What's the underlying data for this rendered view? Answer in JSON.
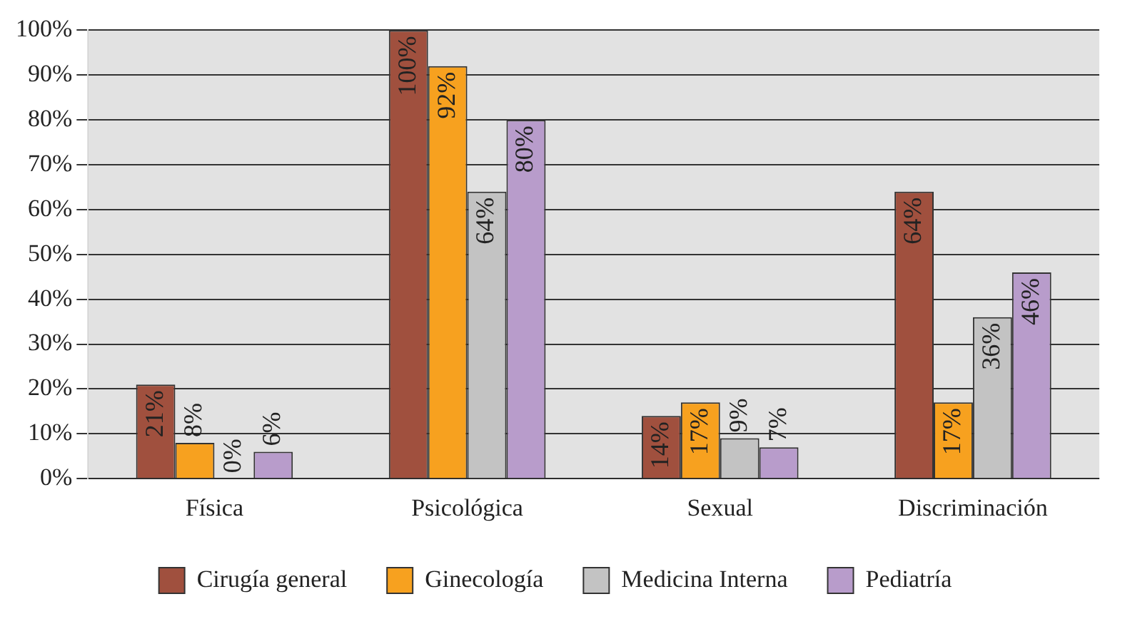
{
  "chart_data": {
    "type": "bar",
    "categories": [
      "Física",
      "Psicológica",
      "Sexual",
      "Discriminación"
    ],
    "series": [
      {
        "name": "Cirugía general",
        "color": "#a0503e",
        "values": [
          21,
          100,
          14,
          64
        ],
        "value_labels": [
          "21%",
          "100%",
          "14%",
          "64%"
        ]
      },
      {
        "name": "Ginecología",
        "color": "#f7a11f",
        "values": [
          8,
          92,
          17,
          17
        ],
        "value_labels": [
          "8%",
          "92%",
          "17%",
          "17%"
        ]
      },
      {
        "name": "Medicina Interna",
        "color": "#c3c3c3",
        "values": [
          0,
          64,
          9,
          36
        ],
        "value_labels": [
          "0%",
          "64%",
          "9%",
          "36%"
        ]
      },
      {
        "name": "Pediatría",
        "color": "#b89ccb",
        "values": [
          6,
          80,
          7,
          46
        ],
        "value_labels": [
          "6%",
          "80%",
          "7%",
          "46%"
        ]
      }
    ],
    "ylim": [
      0,
      100
    ],
    "yticks": [
      {
        "value": 0,
        "label": "0%"
      },
      {
        "value": 10,
        "label": "10%"
      },
      {
        "value": 20,
        "label": "20%"
      },
      {
        "value": 30,
        "label": "30%"
      },
      {
        "value": 40,
        "label": "40%"
      },
      {
        "value": 50,
        "label": "50%"
      },
      {
        "value": 60,
        "label": "60%"
      },
      {
        "value": 70,
        "label": "70%"
      },
      {
        "value": 80,
        "label": "80%"
      },
      {
        "value": 90,
        "label": "90%"
      },
      {
        "value": 100,
        "label": "100%"
      }
    ],
    "grid": "y",
    "legend": "bottom"
  }
}
